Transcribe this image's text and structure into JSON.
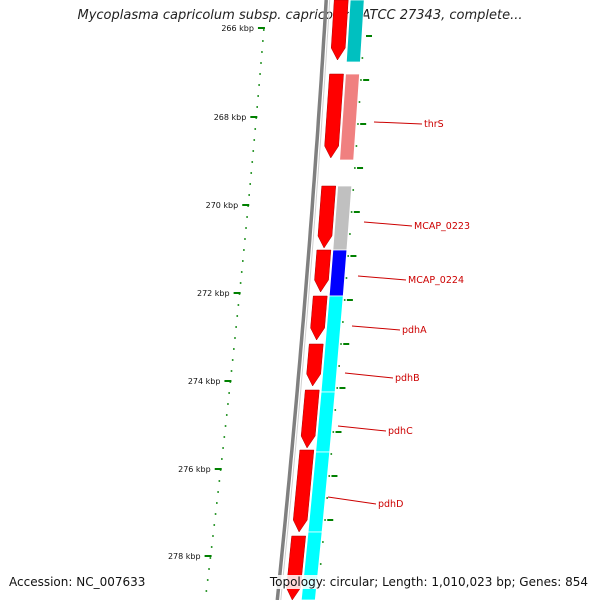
{
  "title": "Mycoplasma capricolum subsp. capricolum ATCC 27343, complete...",
  "footer": {
    "accession": "Accession: NC_007633",
    "summary": "Topology: circular; Length: 1,010,023 bp; Genes: 854"
  },
  "ruler": {
    "ticks": [
      {
        "label": "266 kbp"
      },
      {
        "label": "268 kbp"
      },
      {
        "label": "270 kbp"
      },
      {
        "label": "272 kbp"
      },
      {
        "label": "274 kbp"
      },
      {
        "label": "276 kbp"
      },
      {
        "label": "278 kbp"
      }
    ]
  },
  "genes": {
    "labels": [
      "thrS",
      "MCAP_0223",
      "MCAP_0224",
      "pdhA",
      "pdhB",
      "pdhC",
      "pdhD"
    ]
  },
  "colors": {
    "forward_strand": "#ff0000",
    "backbone": "#808080",
    "thrS": "#f08080",
    "MCAP_0223": "#c0c0c0",
    "MCAP_0224": "#0000ff",
    "pdh": "#00ffff",
    "label": "#cc0000",
    "tick": "#008000"
  }
}
